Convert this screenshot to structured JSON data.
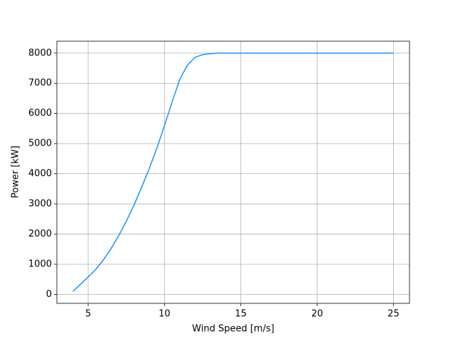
{
  "chart_data": {
    "type": "line",
    "x_label": "Wind Speed [m/s]",
    "y_label": "Power [kW]",
    "x": [
      4,
      4.5,
      5,
      5.5,
      6,
      6.5,
      7,
      7.5,
      8,
      8.5,
      9,
      9.5,
      10,
      10.5,
      11,
      11.5,
      12,
      12.5,
      13,
      13.5,
      14,
      15,
      16,
      17,
      18,
      19,
      20,
      21,
      22,
      23,
      24,
      25
    ],
    "series": [
      {
        "color": "#1e90ff",
        "values": [
          100,
          340,
          580,
          830,
          1150,
          1520,
          1950,
          2430,
          2960,
          3550,
          4170,
          4850,
          5600,
          6380,
          7130,
          7600,
          7860,
          7950,
          7980,
          8000,
          8000,
          8000,
          8000,
          8000,
          8000,
          8000,
          8000,
          8000,
          8000,
          8000,
          8000,
          8000
        ]
      }
    ],
    "xlim": [
      2.95,
      26.05
    ],
    "xticks": [
      5,
      10,
      15,
      20,
      25
    ],
    "ylim": [
      -295,
      8395
    ],
    "yticks": [
      0,
      1000,
      2000,
      3000,
      4000,
      5000,
      6000,
      7000,
      8000
    ],
    "grid": true
  }
}
